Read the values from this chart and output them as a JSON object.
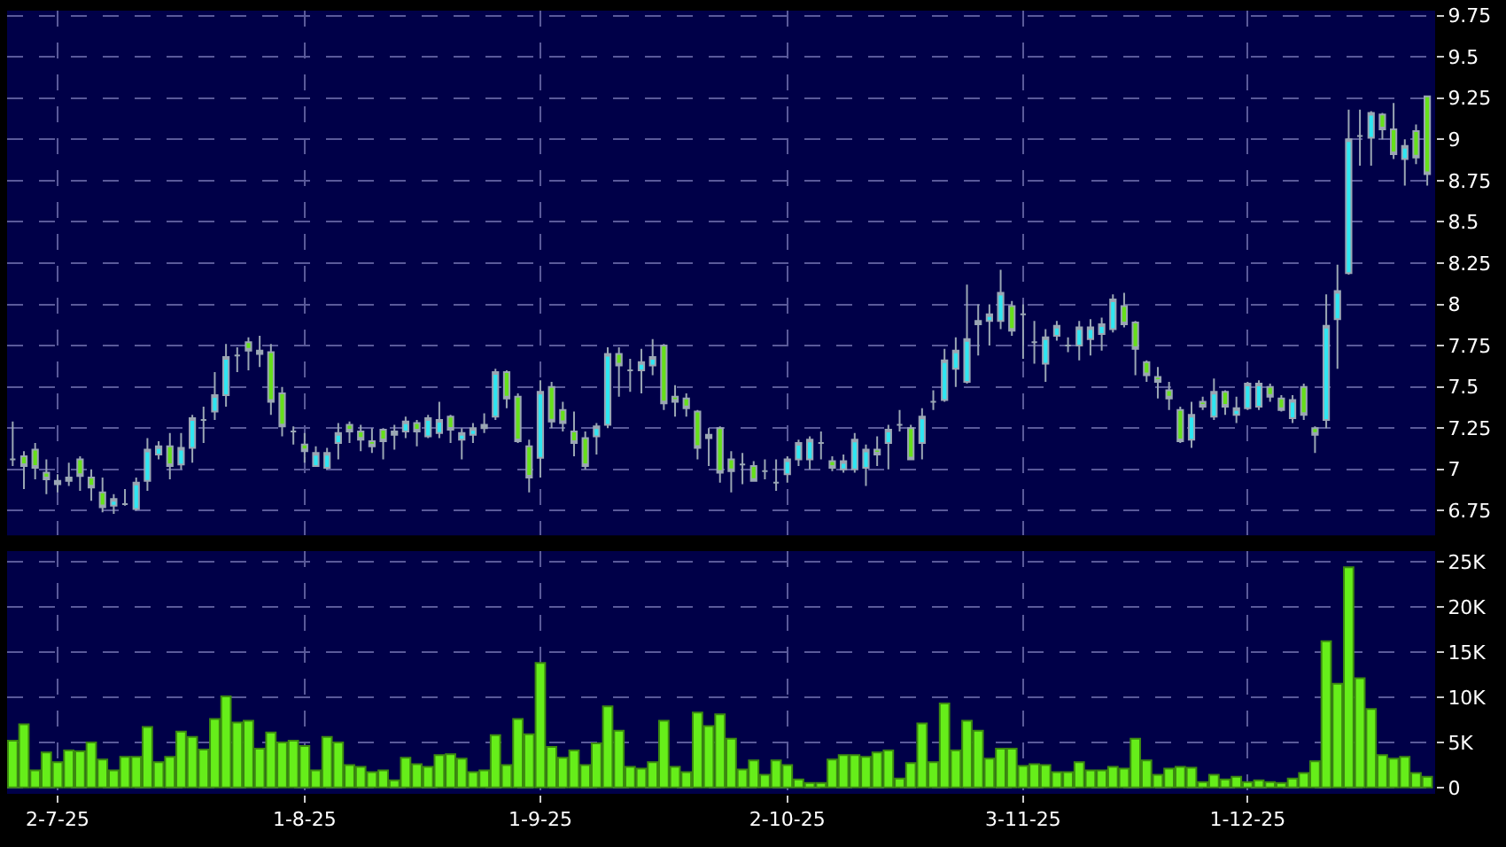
{
  "chart_data": [
    {
      "type": "candlestick",
      "tick_labels": "y",
      "grid": true,
      "categories": [
        null,
        null,
        null,
        null,
        null,
        null,
        null,
        null,
        null,
        null,
        null,
        null,
        null,
        null,
        null,
        null,
        null,
        null,
        null,
        null,
        null,
        null,
        null,
        null,
        null,
        null,
        null,
        null,
        null,
        null,
        null,
        null,
        null,
        null,
        null,
        null,
        null,
        null,
        null,
        null,
        null,
        null,
        null,
        null,
        null,
        null,
        null,
        null,
        null,
        null,
        null,
        null,
        null,
        null,
        null,
        null,
        null,
        null,
        null,
        null,
        null,
        null,
        null,
        null,
        null,
        null,
        null,
        null,
        null,
        null,
        null,
        null,
        null,
        null,
        null,
        null,
        null,
        null,
        null,
        null,
        null,
        null,
        null,
        null,
        null,
        null,
        null,
        null,
        null,
        null,
        null,
        null,
        null,
        null,
        null,
        null,
        null,
        null,
        null,
        null,
        null,
        null,
        null,
        null,
        null,
        null,
        null,
        null,
        null,
        null,
        null,
        null,
        null,
        null,
        null,
        null,
        null,
        null,
        null,
        null,
        null,
        null,
        null,
        null,
        null,
        null,
        null
      ],
      "ohlc": [
        [
          7.06,
          7.29,
          7.02,
          7.06
        ],
        [
          7.08,
          7.11,
          6.88,
          7.02
        ],
        [
          7.12,
          7.16,
          6.94,
          7.01
        ],
        [
          6.98,
          7.06,
          6.85,
          6.94
        ],
        [
          6.93,
          6.97,
          6.86,
          6.91
        ],
        [
          6.93,
          7.04,
          6.9,
          6.95
        ],
        [
          7.06,
          7.08,
          6.87,
          6.96
        ],
        [
          6.95,
          7.0,
          6.81,
          6.89
        ],
        [
          6.86,
          6.95,
          6.74,
          6.77
        ],
        [
          6.78,
          6.85,
          6.73,
          6.82
        ],
        [
          6.79,
          6.88,
          6.78,
          6.79
        ],
        [
          6.76,
          6.95,
          6.75,
          6.92
        ],
        [
          6.93,
          7.19,
          6.87,
          7.12
        ],
        [
          7.09,
          7.17,
          7.06,
          7.14
        ],
        [
          7.14,
          7.22,
          6.94,
          7.02
        ],
        [
          7.03,
          7.22,
          7.0,
          7.13
        ],
        [
          7.13,
          7.33,
          7.04,
          7.31
        ],
        [
          7.3,
          7.38,
          7.16,
          7.3
        ],
        [
          7.35,
          7.59,
          7.3,
          7.45
        ],
        [
          7.45,
          7.76,
          7.38,
          7.68
        ],
        [
          7.69,
          7.74,
          7.59,
          7.69
        ],
        [
          7.77,
          7.8,
          7.6,
          7.72
        ],
        [
          7.72,
          7.81,
          7.62,
          7.7
        ],
        [
          7.71,
          7.76,
          7.33,
          7.41
        ],
        [
          7.46,
          7.5,
          7.2,
          7.26
        ],
        [
          7.23,
          7.26,
          7.15,
          7.23
        ],
        [
          7.15,
          7.22,
          7.04,
          7.11
        ],
        [
          7.02,
          7.14,
          7.02,
          7.1
        ],
        [
          7.01,
          7.13,
          7.0,
          7.1
        ],
        [
          7.16,
          7.28,
          7.06,
          7.22
        ],
        [
          7.27,
          7.29,
          7.16,
          7.23
        ],
        [
          7.23,
          7.27,
          7.11,
          7.18
        ],
        [
          7.17,
          7.25,
          7.1,
          7.14
        ],
        [
          7.24,
          7.25,
          7.06,
          7.17
        ],
        [
          7.23,
          7.27,
          7.12,
          7.21
        ],
        [
          7.23,
          7.32,
          7.19,
          7.29
        ],
        [
          7.28,
          7.3,
          7.14,
          7.23
        ],
        [
          7.2,
          7.33,
          7.19,
          7.31
        ],
        [
          7.22,
          7.41,
          7.19,
          7.3
        ],
        [
          7.32,
          7.33,
          7.16,
          7.24
        ],
        [
          7.18,
          7.25,
          7.06,
          7.22
        ],
        [
          7.21,
          7.28,
          7.16,
          7.25
        ],
        [
          7.25,
          7.34,
          7.22,
          7.27
        ],
        [
          7.32,
          7.61,
          7.3,
          7.59
        ],
        [
          7.59,
          7.6,
          7.37,
          7.43
        ],
        [
          7.44,
          7.46,
          7.16,
          7.17
        ],
        [
          7.14,
          7.18,
          6.86,
          6.95
        ],
        [
          7.07,
          7.54,
          6.95,
          7.47
        ],
        [
          7.5,
          7.53,
          7.25,
          7.29
        ],
        [
          7.36,
          7.41,
          7.23,
          7.28
        ],
        [
          7.23,
          7.35,
          7.08,
          7.16
        ],
        [
          7.19,
          7.23,
          7.0,
          7.02
        ],
        [
          7.2,
          7.28,
          7.09,
          7.26
        ],
        [
          7.27,
          7.74,
          7.25,
          7.7
        ],
        [
          7.7,
          7.74,
          7.44,
          7.63
        ],
        [
          7.6,
          7.67,
          7.47,
          7.6
        ],
        [
          7.6,
          7.73,
          7.46,
          7.65
        ],
        [
          7.63,
          7.79,
          7.57,
          7.68
        ],
        [
          7.75,
          7.76,
          7.36,
          7.4
        ],
        [
          7.44,
          7.51,
          7.32,
          7.41
        ],
        [
          7.43,
          7.46,
          7.32,
          7.37
        ],
        [
          7.35,
          7.36,
          7.06,
          7.13
        ],
        [
          7.19,
          7.25,
          7.02,
          7.21
        ],
        [
          7.25,
          7.26,
          6.92,
          6.98
        ],
        [
          7.06,
          7.11,
          6.86,
          6.99
        ],
        [
          7.03,
          7.1,
          6.91,
          7.03
        ],
        [
          7.02,
          7.05,
          6.93,
          6.93
        ],
        [
          6.99,
          7.06,
          6.94,
          6.99
        ],
        [
          6.92,
          7.06,
          6.87,
          6.92
        ],
        [
          6.97,
          7.08,
          6.92,
          7.06
        ],
        [
          7.06,
          7.18,
          7.02,
          7.16
        ],
        [
          7.06,
          7.2,
          7.0,
          7.18
        ],
        [
          7.16,
          7.23,
          7.06,
          7.16
        ],
        [
          7.05,
          7.08,
          6.99,
          7.01
        ],
        [
          7.0,
          7.09,
          6.98,
          7.05
        ],
        [
          7.0,
          7.22,
          6.98,
          7.18
        ],
        [
          7.01,
          7.15,
          6.9,
          7.12
        ],
        [
          7.12,
          7.2,
          7.02,
          7.09
        ],
        [
          7.16,
          7.27,
          7.0,
          7.24
        ],
        [
          7.27,
          7.36,
          7.23,
          7.27
        ],
        [
          7.25,
          7.27,
          7.06,
          7.06
        ],
        [
          7.16,
          7.37,
          7.06,
          7.32
        ],
        [
          7.41,
          7.48,
          7.36,
          7.41
        ],
        [
          7.42,
          7.73,
          7.41,
          7.66
        ],
        [
          7.61,
          7.8,
          7.5,
          7.72
        ],
        [
          7.53,
          8.12,
          7.52,
          7.79
        ],
        [
          7.9,
          8.0,
          7.69,
          7.88
        ],
        [
          7.9,
          8.0,
          7.75,
          7.94
        ],
        [
          7.9,
          8.21,
          7.85,
          8.07
        ],
        [
          7.99,
          8.02,
          7.81,
          7.84
        ],
        [
          7.94,
          8.0,
          7.67,
          7.94
        ],
        [
          7.77,
          7.9,
          7.64,
          7.77
        ],
        [
          7.64,
          7.85,
          7.53,
          7.8
        ],
        [
          7.81,
          7.9,
          7.78,
          7.87
        ],
        [
          7.75,
          7.8,
          7.71,
          7.75
        ],
        [
          7.75,
          7.9,
          7.66,
          7.86
        ],
        [
          7.79,
          7.91,
          7.69,
          7.86
        ],
        [
          7.82,
          7.92,
          7.72,
          7.88
        ],
        [
          7.85,
          8.06,
          7.83,
          8.03
        ],
        [
          7.99,
          8.07,
          7.86,
          7.88
        ],
        [
          7.89,
          7.9,
          7.57,
          7.73
        ],
        [
          7.65,
          7.66,
          7.53,
          7.57
        ],
        [
          7.56,
          7.62,
          7.43,
          7.53
        ],
        [
          7.48,
          7.53,
          7.36,
          7.43
        ],
        [
          7.36,
          7.38,
          7.16,
          7.17
        ],
        [
          7.18,
          7.41,
          7.13,
          7.33
        ],
        [
          7.41,
          7.44,
          7.36,
          7.38
        ],
        [
          7.32,
          7.55,
          7.3,
          7.47
        ],
        [
          7.47,
          7.48,
          7.33,
          7.38
        ],
        [
          7.33,
          7.44,
          7.28,
          7.37
        ],
        [
          7.37,
          7.53,
          7.36,
          7.52
        ],
        [
          7.38,
          7.54,
          7.36,
          7.52
        ],
        [
          7.5,
          7.52,
          7.41,
          7.44
        ],
        [
          7.43,
          7.45,
          7.35,
          7.36
        ],
        [
          7.31,
          7.45,
          7.28,
          7.42
        ],
        [
          7.5,
          7.52,
          7.3,
          7.33
        ],
        [
          7.25,
          7.26,
          7.1,
          7.21
        ],
        [
          7.3,
          8.06,
          7.25,
          7.87
        ],
        [
          7.91,
          8.24,
          7.61,
          8.08
        ],
        [
          8.19,
          9.18,
          8.18,
          9.0
        ],
        [
          9.02,
          9.18,
          8.84,
          9.02
        ],
        [
          9.01,
          9.17,
          8.84,
          9.16
        ],
        [
          9.15,
          9.16,
          9.0,
          9.06
        ],
        [
          9.06,
          9.22,
          8.88,
          8.91
        ],
        [
          8.88,
          9.0,
          8.72,
          8.96
        ],
        [
          9.05,
          9.09,
          8.85,
          8.89
        ],
        [
          9.26,
          9.26,
          8.72,
          8.79
        ]
      ],
      "ylim": [
        6.6,
        9.78
      ],
      "yticks": [
        6.75,
        7,
        7.25,
        7.5,
        7.75,
        8,
        8.25,
        8.5,
        8.75,
        9,
        9.25,
        9.5,
        9.75
      ]
    },
    {
      "type": "bar",
      "grid": true,
      "color": "#66ee1a",
      "categories": [
        null,
        null,
        null,
        null,
        "2-7-25",
        null,
        null,
        null,
        null,
        null,
        null,
        null,
        null,
        null,
        null,
        null,
        null,
        null,
        null,
        null,
        null,
        null,
        null,
        null,
        null,
        null,
        "1-8-25",
        null,
        null,
        null,
        null,
        null,
        null,
        null,
        null,
        null,
        null,
        null,
        null,
        null,
        null,
        null,
        null,
        null,
        null,
        null,
        null,
        "1-9-25",
        null,
        null,
        null,
        null,
        null,
        null,
        null,
        null,
        null,
        null,
        null,
        null,
        null,
        null,
        null,
        null,
        null,
        null,
        null,
        null,
        null,
        "2-10-25",
        null,
        null,
        null,
        null,
        null,
        null,
        null,
        null,
        null,
        null,
        null,
        null,
        null,
        null,
        null,
        null,
        null,
        null,
        null,
        null,
        "3-11-25",
        null,
        null,
        null,
        null,
        null,
        null,
        null,
        null,
        null,
        null,
        null,
        null,
        null,
        null,
        null,
        null,
        null,
        null,
        null,
        "1-12-25",
        null,
        null,
        null,
        null,
        null,
        null,
        null,
        null,
        null,
        null,
        null,
        null,
        null,
        null,
        null,
        null
      ],
      "values": [
        5200,
        7000,
        1900,
        3900,
        2800,
        4100,
        4000,
        5000,
        3100,
        1900,
        3400,
        3400,
        6700,
        2800,
        3400,
        6200,
        5600,
        4200,
        7600,
        10100,
        7200,
        7400,
        4300,
        6100,
        5000,
        5200,
        4600,
        1900,
        5600,
        5000,
        2500,
        2300,
        1700,
        1900,
        800,
        3300,
        2600,
        2300,
        3600,
        3700,
        3200,
        1700,
        1900,
        5800,
        2500,
        7600,
        5900,
        13800,
        4500,
        3300,
        4100,
        2500,
        4900,
        9000,
        6300,
        2300,
        2100,
        2800,
        7400,
        2300,
        1700,
        8300,
        6800,
        8100,
        5400,
        2000,
        3000,
        1400,
        3000,
        2500,
        900,
        500,
        500,
        3100,
        3600,
        3600,
        3400,
        3900,
        4100,
        1000,
        2700,
        7100,
        2800,
        9300,
        4100,
        7400,
        6300,
        3200,
        4300,
        4300,
        2400,
        2600,
        2500,
        1700,
        1700,
        2800,
        1900,
        1900,
        2300,
        2100,
        5400,
        3000,
        1400,
        2100,
        2300,
        2200,
        600,
        1400,
        900,
        1200,
        600,
        800,
        600,
        500,
        1000,
        1600,
        2900,
        16200,
        11500,
        24400,
        12100,
        8700,
        3600,
        3200,
        3400,
        1600,
        1200
      ],
      "ylim": [
        -700,
        26200
      ],
      "yticks": [
        0,
        {
          "value": 5000,
          "label": "5K"
        },
        {
          "value": 10000,
          "label": "10K"
        },
        {
          "value": 15000,
          "label": "15K"
        },
        {
          "value": 20000,
          "label": "20K"
        },
        {
          "value": 25000,
          "label": "25K"
        }
      ]
    }
  ]
}
